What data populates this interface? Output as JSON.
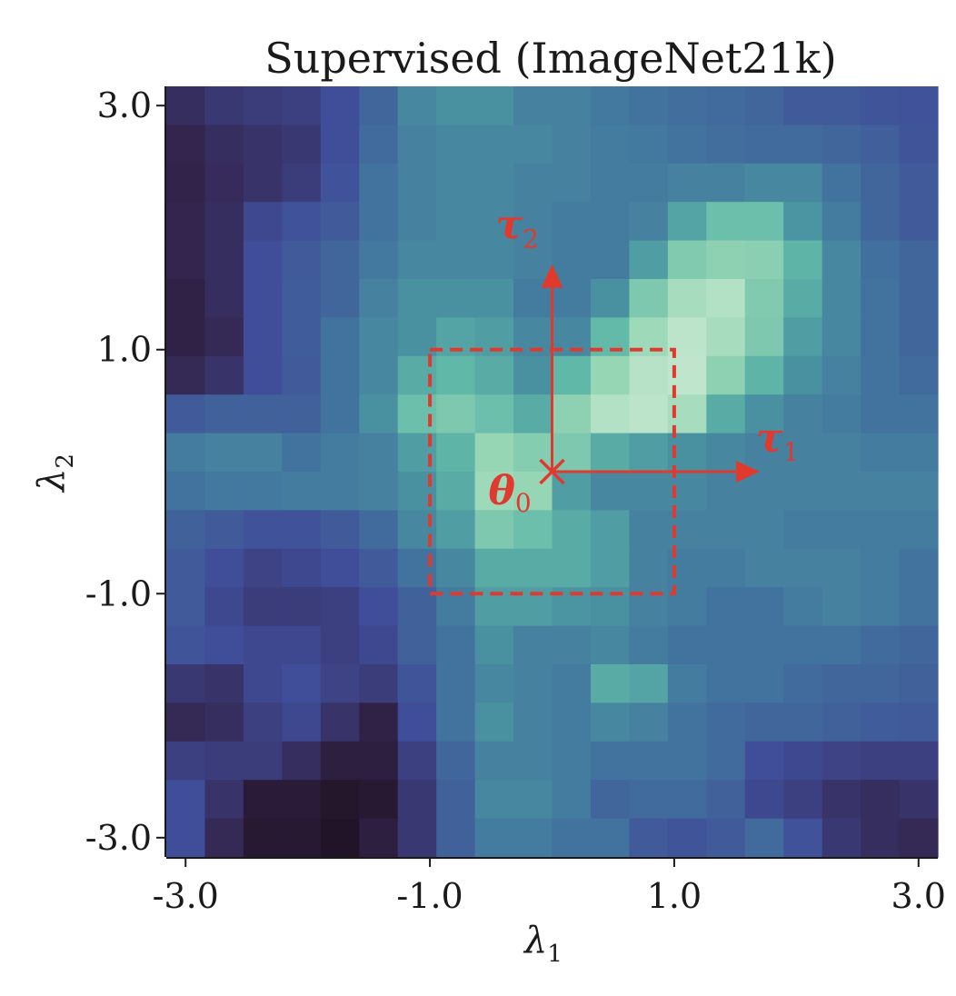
{
  "chart_data": {
    "type": "heatmap",
    "title": "Supervised (ImageNet21k)",
    "xlabel": "λ",
    "xlabel_sub": "1",
    "ylabel": "λ",
    "ylabel_sub": "2",
    "xlim": [
      -3.0,
      3.0
    ],
    "ylim": [
      -3.0,
      3.0
    ],
    "x_ticks": [
      -3.0,
      -1.0,
      1.0,
      3.0
    ],
    "y_ticks": [
      -3.0,
      -1.0,
      1.0,
      3.0
    ],
    "x_tick_labels": [
      "-3.0",
      "-1.0",
      "1.0",
      "3.0"
    ],
    "y_tick_labels": [
      "-3.0",
      "-1.0",
      "1.0",
      "3.0"
    ],
    "colormap": "mako",
    "grid_rows_top_to_bottom": [
      [
        0.18,
        0.22,
        0.24,
        0.25,
        0.3,
        0.4,
        0.52,
        0.55,
        0.55,
        0.5,
        0.5,
        0.47,
        0.45,
        0.43,
        0.42,
        0.4,
        0.35,
        0.35,
        0.33,
        0.32
      ],
      [
        0.14,
        0.18,
        0.2,
        0.22,
        0.3,
        0.42,
        0.5,
        0.52,
        0.52,
        0.52,
        0.5,
        0.48,
        0.47,
        0.45,
        0.43,
        0.42,
        0.42,
        0.4,
        0.37,
        0.33
      ],
      [
        0.13,
        0.17,
        0.2,
        0.24,
        0.32,
        0.45,
        0.5,
        0.52,
        0.52,
        0.5,
        0.5,
        0.48,
        0.48,
        0.5,
        0.5,
        0.52,
        0.52,
        0.45,
        0.4,
        0.35
      ],
      [
        0.14,
        0.18,
        0.28,
        0.32,
        0.35,
        0.45,
        0.5,
        0.52,
        0.52,
        0.5,
        0.48,
        0.48,
        0.5,
        0.6,
        0.68,
        0.68,
        0.56,
        0.48,
        0.4,
        0.35
      ],
      [
        0.14,
        0.18,
        0.3,
        0.35,
        0.4,
        0.47,
        0.52,
        0.52,
        0.52,
        0.5,
        0.48,
        0.48,
        0.58,
        0.73,
        0.76,
        0.75,
        0.64,
        0.52,
        0.44,
        0.4
      ],
      [
        0.12,
        0.18,
        0.3,
        0.36,
        0.4,
        0.5,
        0.55,
        0.55,
        0.55,
        0.48,
        0.48,
        0.55,
        0.72,
        0.82,
        0.85,
        0.73,
        0.62,
        0.52,
        0.45,
        0.4
      ],
      [
        0.12,
        0.16,
        0.3,
        0.36,
        0.45,
        0.52,
        0.55,
        0.6,
        0.58,
        0.52,
        0.52,
        0.66,
        0.8,
        0.87,
        0.82,
        0.72,
        0.58,
        0.52,
        0.45,
        0.4
      ],
      [
        0.16,
        0.2,
        0.3,
        0.35,
        0.45,
        0.52,
        0.62,
        0.65,
        0.62,
        0.55,
        0.65,
        0.78,
        0.86,
        0.88,
        0.76,
        0.64,
        0.55,
        0.5,
        0.45,
        0.42
      ],
      [
        0.35,
        0.38,
        0.38,
        0.38,
        0.45,
        0.55,
        0.68,
        0.72,
        0.68,
        0.62,
        0.76,
        0.85,
        0.87,
        0.82,
        0.62,
        0.55,
        0.5,
        0.48,
        0.45,
        0.45
      ],
      [
        0.48,
        0.5,
        0.5,
        0.45,
        0.48,
        0.5,
        0.58,
        0.64,
        0.78,
        0.74,
        0.72,
        0.62,
        0.58,
        0.55,
        0.52,
        0.5,
        0.5,
        0.5,
        0.48,
        0.48
      ],
      [
        0.45,
        0.47,
        0.47,
        0.48,
        0.48,
        0.5,
        0.55,
        0.62,
        0.8,
        0.78,
        0.58,
        0.52,
        0.52,
        0.52,
        0.5,
        0.5,
        0.5,
        0.5,
        0.5,
        0.5
      ],
      [
        0.38,
        0.35,
        0.32,
        0.32,
        0.35,
        0.42,
        0.52,
        0.58,
        0.72,
        0.68,
        0.62,
        0.58,
        0.5,
        0.5,
        0.5,
        0.5,
        0.48,
        0.48,
        0.48,
        0.48
      ],
      [
        0.35,
        0.3,
        0.26,
        0.28,
        0.3,
        0.35,
        0.45,
        0.52,
        0.62,
        0.62,
        0.62,
        0.58,
        0.5,
        0.48,
        0.48,
        0.5,
        0.5,
        0.5,
        0.48,
        0.45
      ],
      [
        0.35,
        0.28,
        0.24,
        0.24,
        0.25,
        0.3,
        0.38,
        0.48,
        0.58,
        0.58,
        0.56,
        0.55,
        0.5,
        0.48,
        0.45,
        0.45,
        0.48,
        0.5,
        0.48,
        0.45
      ],
      [
        0.33,
        0.3,
        0.28,
        0.28,
        0.25,
        0.28,
        0.38,
        0.45,
        0.55,
        0.5,
        0.5,
        0.52,
        0.48,
        0.45,
        0.45,
        0.45,
        0.45,
        0.45,
        0.42,
        0.4
      ],
      [
        0.22,
        0.2,
        0.28,
        0.3,
        0.26,
        0.24,
        0.33,
        0.45,
        0.52,
        0.5,
        0.48,
        0.62,
        0.6,
        0.48,
        0.45,
        0.45,
        0.42,
        0.4,
        0.4,
        0.38
      ],
      [
        0.16,
        0.18,
        0.25,
        0.28,
        0.2,
        0.12,
        0.3,
        0.45,
        0.55,
        0.5,
        0.48,
        0.52,
        0.5,
        0.45,
        0.42,
        0.4,
        0.4,
        0.38,
        0.36,
        0.35
      ],
      [
        0.25,
        0.24,
        0.24,
        0.18,
        0.1,
        0.1,
        0.25,
        0.4,
        0.5,
        0.5,
        0.48,
        0.45,
        0.45,
        0.45,
        0.42,
        0.3,
        0.28,
        0.26,
        0.25,
        0.25
      ],
      [
        0.3,
        0.2,
        0.08,
        0.08,
        0.04,
        0.06,
        0.22,
        0.38,
        0.52,
        0.52,
        0.48,
        0.4,
        0.42,
        0.42,
        0.38,
        0.28,
        0.25,
        0.2,
        0.18,
        0.2
      ],
      [
        0.3,
        0.16,
        0.06,
        0.06,
        0.03,
        0.1,
        0.22,
        0.38,
        0.48,
        0.48,
        0.45,
        0.45,
        0.35,
        0.33,
        0.35,
        0.42,
        0.32,
        0.22,
        0.18,
        0.16
      ]
    ],
    "box": {
      "x": [
        -1.0,
        1.0
      ],
      "y": [
        -1.0,
        1.0
      ],
      "style": "dashed",
      "color": "#e03a2f"
    },
    "origin": {
      "x": 0.0,
      "y": 0.0,
      "marker": "x",
      "label": "θ",
      "label_sub": "0"
    },
    "arrows": [
      {
        "name": "tau1",
        "from": [
          0.0,
          0.0
        ],
        "to": [
          1.7,
          0.0
        ],
        "label": "τ",
        "label_sub": "1"
      },
      {
        "name": "tau2",
        "from": [
          0.0,
          0.0
        ],
        "to": [
          0.0,
          1.7
        ],
        "label": "τ",
        "label_sub": "2"
      }
    ],
    "annotation_color": "#e03a2f",
    "grid": false
  }
}
